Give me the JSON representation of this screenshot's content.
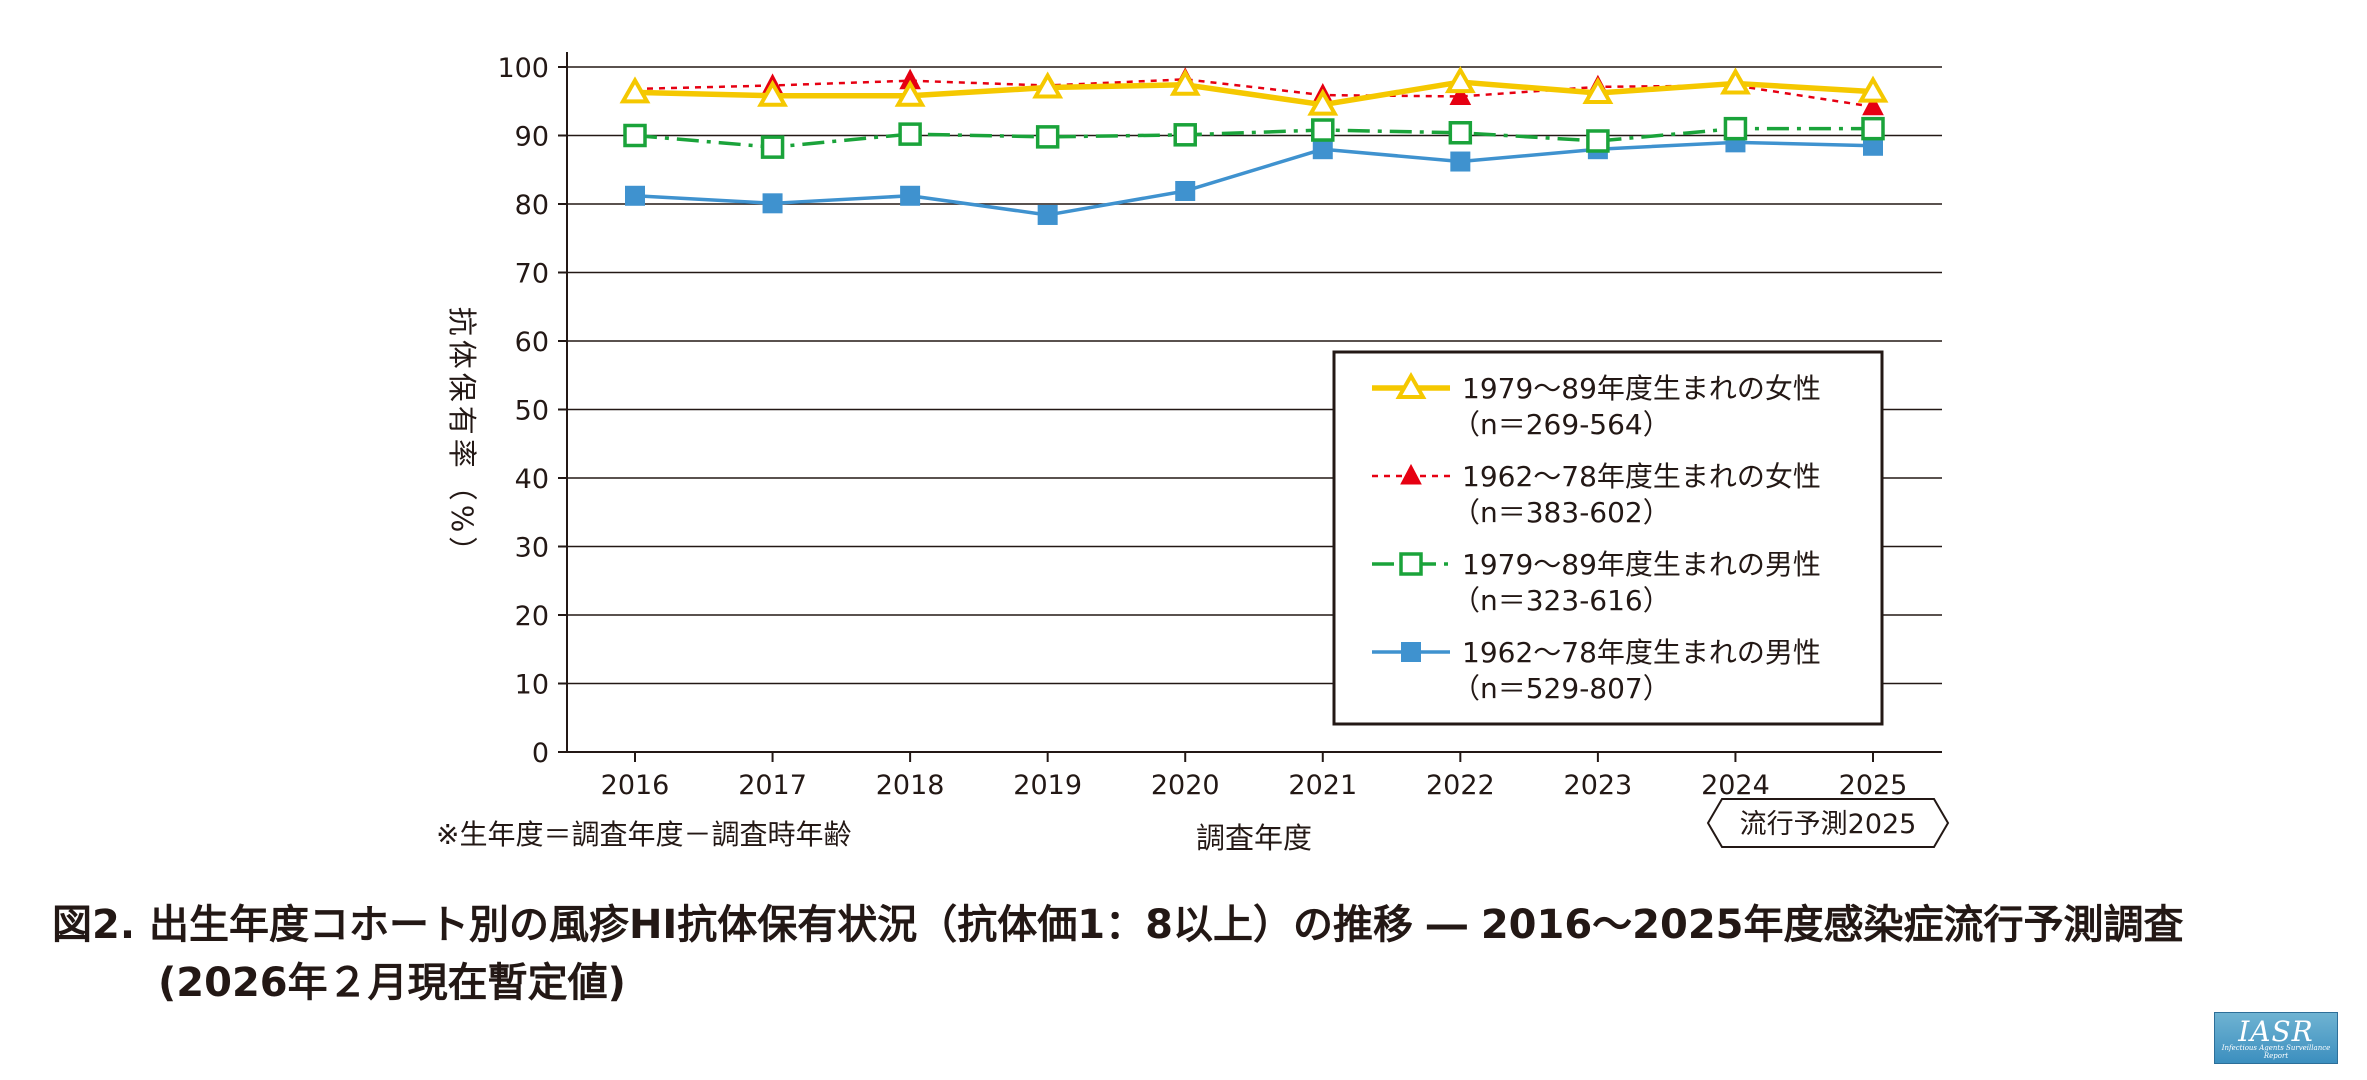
{
  "chart_data": {
    "type": "line",
    "ylabel": "抗体保有率（%）",
    "xlabel": "調査年度",
    "ylim": [
      0,
      100
    ],
    "yticks": [
      0,
      10,
      20,
      30,
      40,
      50,
      60,
      70,
      80,
      90,
      100
    ],
    "categories": [
      "2016",
      "2017",
      "2018",
      "2019",
      "2020",
      "2021",
      "2022",
      "2023",
      "2024",
      "2025"
    ],
    "grid": true,
    "legend_position": "right-center",
    "note": "※生年度＝調査年度－調査時年齢",
    "badge": "流行予測2025",
    "series": [
      {
        "name": "1979～89年度生まれの女性",
        "n": "（n＝269-564）",
        "color": "#f5c800",
        "style": "solid",
        "marker": "triangle-open",
        "values": [
          96.3,
          95.8,
          95.8,
          97.0,
          97.4,
          94.5,
          97.8,
          96.2,
          97.6,
          96.4
        ]
      },
      {
        "name": "1962～78年度生まれの女性",
        "n": "（n＝383-602）",
        "color": "#e60012",
        "style": "dotted",
        "marker": "triangle-filled",
        "values": [
          96.8,
          97.3,
          98.0,
          97.3,
          98.2,
          95.9,
          95.7,
          97.1,
          97.3,
          94.2
        ]
      },
      {
        "name": "1979～89年度生まれの男性",
        "n": "（n＝323-616）",
        "color": "#1aa33a",
        "style": "dashdot",
        "marker": "square-open",
        "values": [
          90.0,
          88.3,
          90.2,
          89.8,
          90.1,
          90.8,
          90.4,
          89.2,
          91.0,
          91.0
        ]
      },
      {
        "name": "1962～78年度生まれの男性",
        "n": "（n＝529-807）",
        "color": "#3f92cf",
        "style": "solid",
        "marker": "square-filled",
        "values": [
          81.2,
          80.1,
          81.2,
          78.4,
          81.9,
          88.0,
          86.2,
          88.0,
          89.0,
          88.5
        ]
      }
    ]
  },
  "caption": {
    "line1": "図2. 出生年度コホート別の風疹HI抗体保有状況（抗体価1：8以上）の推移 ― 2016～2025年度感染症流行予測調査",
    "line2": "(2026年２月現在暫定値)"
  },
  "logo": {
    "text": "IASR",
    "subtitle": "Infectious Agents Surveillance Report"
  }
}
